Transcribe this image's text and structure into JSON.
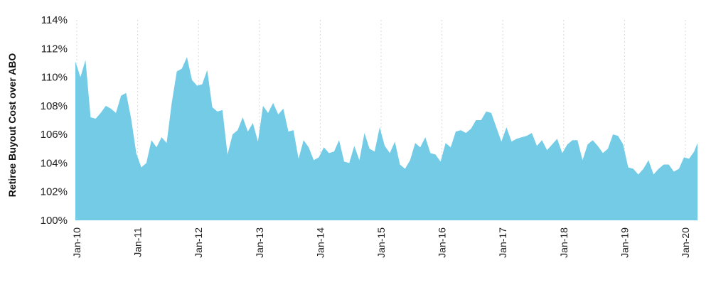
{
  "chart_data": {
    "type": "area",
    "title": "",
    "xlabel": "",
    "ylabel": "Retiree Buyout Cost over ABO",
    "color": "#73cbe6",
    "ylim": [
      100,
      114
    ],
    "y_ticks": [
      "100%",
      "102%",
      "104%",
      "106%",
      "108%",
      "110%",
      "112%",
      "114%"
    ],
    "y_tick_values": [
      100,
      102,
      104,
      106,
      108,
      110,
      112,
      114
    ],
    "x_ticks": [
      "Jan-10",
      "Jan-11",
      "Jan-12",
      "Jan-13",
      "Jan-14",
      "Jan-15",
      "Jan-16",
      "Jan-17",
      "Jan-18",
      "Jan-19",
      "Jan-20"
    ],
    "x_start": "Jan-10",
    "x_end": "Apr-20",
    "grid": "vertical dotted at year ticks",
    "series": [
      {
        "name": "",
        "frequency": "monthly",
        "values": [
          111.1,
          110.0,
          111.2,
          107.2,
          107.1,
          107.5,
          108.0,
          107.8,
          107.5,
          108.7,
          108.9,
          107.1,
          104.7,
          103.7,
          104.0,
          105.6,
          105.1,
          105.8,
          105.4,
          108.2,
          110.4,
          110.6,
          111.4,
          109.8,
          109.4,
          109.5,
          110.5,
          107.9,
          107.6,
          107.7,
          104.6,
          106.0,
          106.3,
          107.2,
          106.2,
          106.8,
          105.5,
          108.0,
          107.5,
          108.2,
          107.4,
          107.8,
          106.2,
          106.3,
          104.3,
          105.6,
          105.1,
          104.2,
          104.4,
          105.1,
          104.7,
          104.8,
          105.6,
          104.1,
          104.0,
          105.2,
          104.2,
          106.1,
          105.0,
          104.8,
          106.5,
          105.2,
          104.7,
          105.5,
          103.9,
          103.6,
          104.2,
          105.4,
          105.1,
          105.8,
          104.7,
          104.6,
          104.1,
          105.4,
          105.1,
          106.2,
          106.3,
          106.1,
          106.4,
          107.0,
          107.0,
          107.6,
          107.5,
          106.5,
          105.5,
          106.5,
          105.5,
          105.7,
          105.8,
          105.9,
          106.1,
          105.2,
          105.6,
          104.9,
          105.3,
          105.7,
          104.7,
          105.3,
          105.6,
          105.6,
          104.2,
          105.3,
          105.6,
          105.2,
          104.7,
          105.0,
          106.0,
          105.9,
          105.3,
          103.7,
          103.6,
          103.2,
          103.6,
          104.2,
          103.2,
          103.6,
          103.9,
          103.9,
          103.4,
          103.6,
          104.4,
          104.3,
          104.8,
          105.4
        ]
      }
    ]
  }
}
